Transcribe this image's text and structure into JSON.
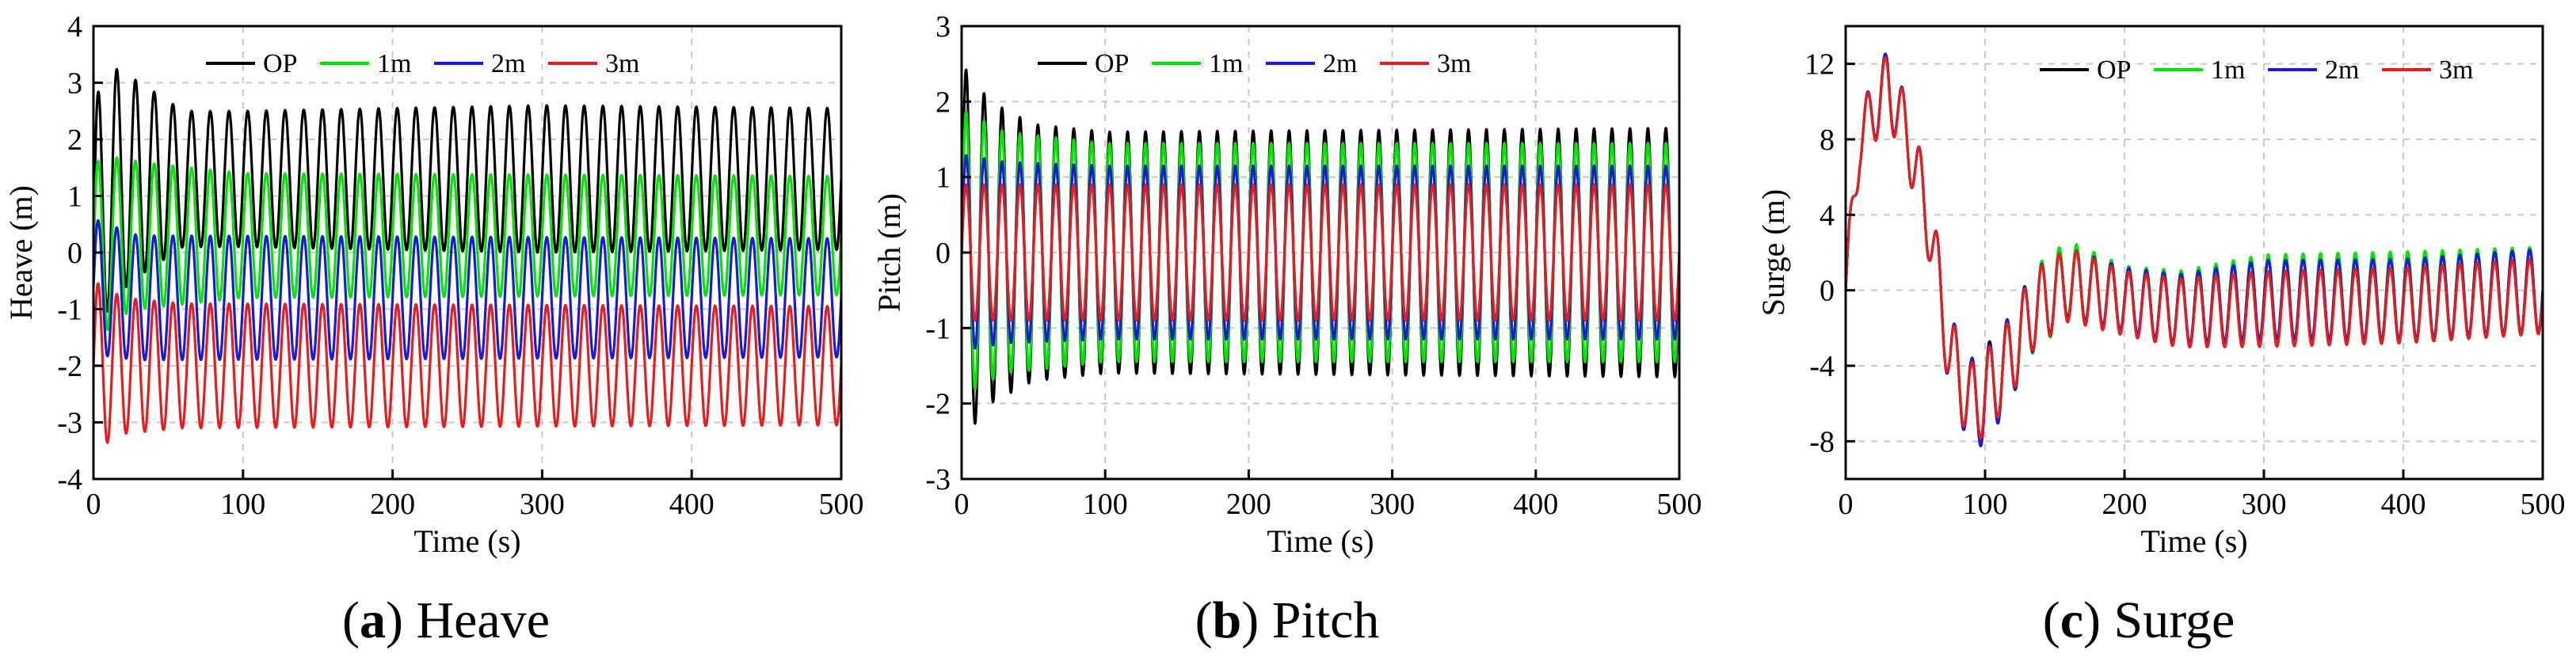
{
  "figure": {
    "captions": [
      {
        "letter": "a",
        "open": "(",
        "close": ") ",
        "text": "Heave"
      },
      {
        "letter": "b",
        "open": "(",
        "close": ") ",
        "text": "Pitch"
      },
      {
        "letter": "c",
        "open": "(",
        "close": ") ",
        "text": "Surge"
      }
    ]
  },
  "chart_data": [
    {
      "type": "line",
      "title": "Heave",
      "xlabel": "Time (s)",
      "ylabel": "Heave (m)",
      "xlim": [
        0,
        500
      ],
      "ylim": [
        -4,
        4
      ],
      "xticks": [
        0,
        100,
        200,
        300,
        400,
        500
      ],
      "yticks": [
        -4,
        -3,
        -2,
        -1,
        0,
        1,
        2,
        3,
        4
      ],
      "grid": true,
      "legend": "top, horizontal",
      "period_s": 12.5,
      "series": [
        {
          "name": "OP",
          "color": "#000000",
          "mean": [
            [
              0,
              0.2
            ],
            [
              10,
              1.2
            ],
            [
              30,
              1.3
            ],
            [
              100,
              1.3
            ],
            [
              500,
              1.3
            ]
          ],
          "amplitude": [
            [
              0,
              2.4
            ],
            [
              20,
              1.9
            ],
            [
              60,
              1.2
            ],
            [
              100,
              1.2
            ],
            [
              300,
              1.3
            ],
            [
              500,
              1.25
            ]
          ]
        },
        {
          "name": "1m",
          "color": "#00e600",
          "mean": [
            [
              0,
              0
            ],
            [
              20,
              0.3
            ],
            [
              500,
              0.3
            ]
          ],
          "amplitude": [
            [
              0,
              1.6
            ],
            [
              30,
              1.3
            ],
            [
              100,
              1.1
            ],
            [
              500,
              1.05
            ]
          ]
        },
        {
          "name": "2m",
          "color": "#1a1ad6",
          "mean": [
            [
              0,
              -0.6
            ],
            [
              30,
              -0.8
            ],
            [
              500,
              -0.8
            ]
          ],
          "amplitude": [
            [
              0,
              1.2
            ],
            [
              30,
              1.1
            ],
            [
              500,
              1.05
            ]
          ]
        },
        {
          "name": "3m",
          "color": "#e81c1c",
          "mean": [
            [
              0,
              -2.0
            ],
            [
              500,
              -2.0
            ]
          ],
          "amplitude": [
            [
              0,
              1.5
            ],
            [
              20,
              1.2
            ],
            [
              60,
              1.1
            ],
            [
              500,
              1.05
            ]
          ]
        }
      ]
    },
    {
      "type": "line",
      "title": "Pitch",
      "xlabel": "Time (s)",
      "ylabel": "Pitch (m)",
      "xlim": [
        0,
        500
      ],
      "ylim": [
        -3,
        3
      ],
      "xticks": [
        0,
        100,
        200,
        300,
        400,
        500
      ],
      "yticks": [
        -3,
        -2,
        -1,
        0,
        1,
        2,
        3
      ],
      "grid": true,
      "legend": "top, horizontal",
      "period_s": 12.5,
      "series": [
        {
          "name": "OP",
          "color": "#000000",
          "mean": [
            [
              0,
              0
            ],
            [
              500,
              0
            ]
          ],
          "amplitude": [
            [
              0,
              2.5
            ],
            [
              20,
              2.0
            ],
            [
              50,
              1.7
            ],
            [
              100,
              1.6
            ],
            [
              500,
              1.65
            ]
          ]
        },
        {
          "name": "1m",
          "color": "#00e600",
          "mean": [
            [
              0,
              0
            ],
            [
              500,
              0
            ]
          ],
          "amplitude": [
            [
              0,
              1.9
            ],
            [
              30,
              1.6
            ],
            [
              100,
              1.45
            ],
            [
              500,
              1.45
            ]
          ]
        },
        {
          "name": "2m",
          "color": "#1a1ad6",
          "mean": [
            [
              0,
              0
            ],
            [
              500,
              0
            ]
          ],
          "amplitude": [
            [
              0,
              1.3
            ],
            [
              30,
              1.2
            ],
            [
              100,
              1.15
            ],
            [
              500,
              1.15
            ]
          ]
        },
        {
          "name": "3m",
          "color": "#e81c1c",
          "mean": [
            [
              0,
              0
            ],
            [
              500,
              0
            ]
          ],
          "amplitude": [
            [
              0,
              0.9
            ],
            [
              500,
              0.9
            ]
          ]
        }
      ]
    },
    {
      "type": "line",
      "title": "Surge",
      "xlabel": "Time (s)",
      "ylabel": "Surge (m)",
      "xlim": [
        0,
        500
      ],
      "ylim": [
        -10,
        14
      ],
      "xticks": [
        0,
        100,
        200,
        300,
        400,
        500
      ],
      "yticks": [
        -8,
        -4,
        0,
        4,
        8,
        12
      ],
      "grid": true,
      "legend": "top, horizontal",
      "period_s": 12.5,
      "series": [
        {
          "name": "OP",
          "color": "#000000",
          "mean": [
            [
              0,
              0
            ],
            [
              10,
              8
            ],
            [
              30,
              11
            ],
            [
              45,
              8
            ],
            [
              60,
              3.5
            ],
            [
              75,
              -3.5
            ],
            [
              90,
              -6
            ],
            [
              100,
              -5.5
            ],
            [
              115,
              -4
            ],
            [
              135,
              -1
            ],
            [
              160,
              0.5
            ],
            [
              200,
              -0.5
            ],
            [
              240,
              -1
            ],
            [
              300,
              -0.5
            ],
            [
              400,
              -0.5
            ],
            [
              500,
              0
            ]
          ],
          "amplitude": [
            [
              0,
              1.5
            ],
            [
              30,
              1.8
            ],
            [
              60,
              2.0
            ],
            [
              100,
              2.5
            ],
            [
              150,
              2.0
            ],
            [
              200,
              1.7
            ],
            [
              300,
              2.3
            ],
            [
              500,
              2.3
            ]
          ]
        },
        {
          "name": "1m",
          "color": "#00e600",
          "mean": [
            [
              0,
              0
            ],
            [
              10,
              8
            ],
            [
              30,
              11
            ],
            [
              45,
              8
            ],
            [
              60,
              3.5
            ],
            [
              75,
              -3.5
            ],
            [
              90,
              -6
            ],
            [
              100,
              -5.5
            ],
            [
              115,
              -4
            ],
            [
              135,
              -1
            ],
            [
              160,
              0.5
            ],
            [
              200,
              -0.5
            ],
            [
              240,
              -1
            ],
            [
              300,
              -0.5
            ],
            [
              400,
              -0.3
            ],
            [
              500,
              0
            ]
          ],
          "amplitude": [
            [
              0,
              1.5
            ],
            [
              30,
              1.8
            ],
            [
              60,
              2.0
            ],
            [
              100,
              2.3
            ],
            [
              150,
              2.2
            ],
            [
              200,
              1.8
            ],
            [
              300,
              2.4
            ],
            [
              500,
              2.3
            ]
          ]
        },
        {
          "name": "2m",
          "color": "#1a1ad6",
          "mean": [
            [
              0,
              0
            ],
            [
              10,
              8
            ],
            [
              30,
              11
            ],
            [
              45,
              8
            ],
            [
              60,
              3.5
            ],
            [
              75,
              -3.5
            ],
            [
              90,
              -6
            ],
            [
              100,
              -5.7
            ],
            [
              115,
              -4
            ],
            [
              135,
              -1
            ],
            [
              160,
              0.3
            ],
            [
              200,
              -0.5
            ],
            [
              240,
              -1
            ],
            [
              300,
              -0.5
            ],
            [
              400,
              -0.5
            ],
            [
              500,
              0
            ]
          ],
          "amplitude": [
            [
              0,
              1.5
            ],
            [
              30,
              1.8
            ],
            [
              60,
              2.0
            ],
            [
              100,
              2.5
            ],
            [
              150,
              2.0
            ],
            [
              200,
              1.7
            ],
            [
              300,
              2.1
            ],
            [
              500,
              2.2
            ]
          ]
        },
        {
          "name": "3m",
          "color": "#e81c1c",
          "mean": [
            [
              0,
              0
            ],
            [
              10,
              8
            ],
            [
              30,
              10.8
            ],
            [
              45,
              8
            ],
            [
              60,
              3.5
            ],
            [
              75,
              -3.5
            ],
            [
              90,
              -6
            ],
            [
              100,
              -5.5
            ],
            [
              115,
              -4
            ],
            [
              135,
              -1
            ],
            [
              160,
              0.3
            ],
            [
              200,
              -0.7
            ],
            [
              240,
              -1.2
            ],
            [
              300,
              -1
            ],
            [
              400,
              -0.8
            ],
            [
              500,
              -0.3
            ]
          ],
          "amplitude": [
            [
              0,
              1.5
            ],
            [
              30,
              1.8
            ],
            [
              60,
              2.0
            ],
            [
              100,
              2.2
            ],
            [
              150,
              2.0
            ],
            [
              200,
              1.7
            ],
            [
              300,
              2.0
            ],
            [
              500,
              2.0
            ]
          ]
        }
      ]
    }
  ]
}
